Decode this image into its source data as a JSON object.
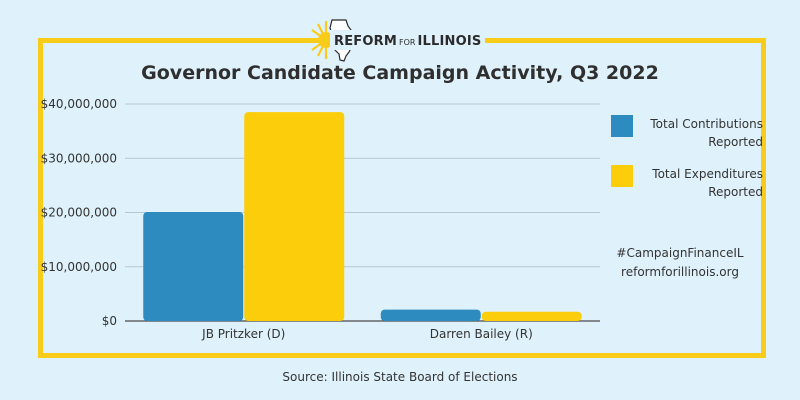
{
  "header": {
    "logo_main": "REFORM",
    "logo_mid": "FOR",
    "logo_end": "ILLINOIS"
  },
  "legend": [
    {
      "label_line1": "Total Contributions",
      "label_line2": "Reported",
      "color": "#2e8bc0"
    },
    {
      "label_line1": "Total Expenditures",
      "label_line2": "Reported",
      "color": "#fccd0b"
    }
  ],
  "hashtag": "#CampaignFinanceIL",
  "website": "reformforillinois.org",
  "source": "Source: Illinois State Board of Elections",
  "colors": {
    "background": "#dff2fb",
    "frame": "#f9cc1a",
    "contributions": "#2e8bc0",
    "expenditures": "#fccd0b",
    "gridline": "#b8c7cf"
  },
  "chart_data": {
    "type": "bar",
    "title": "Governor Candidate Campaign Activity, Q3 2022",
    "categories": [
      "JB Pritzker (D)",
      "Darren Bailey (R)"
    ],
    "series": [
      {
        "name": "Total Contributions Reported",
        "values": [
          20100000,
          2100000
        ]
      },
      {
        "name": "Total Expenditures Reported",
        "values": [
          38500000,
          1700000
        ]
      }
    ],
    "yticks": [
      "$0",
      "$10,000,000",
      "$20,000,000",
      "$30,000,000",
      "$40,000,000"
    ],
    "ylim": [
      0,
      40000000
    ],
    "grid": true,
    "legend_position": "right"
  }
}
